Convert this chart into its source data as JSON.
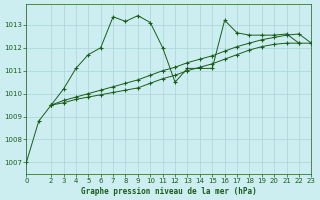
{
  "title": "Graphe pression niveau de la mer (hPa)",
  "bg_color": "#cceef0",
  "grid_color": "#aad4d8",
  "line_color": "#1a5c1a",
  "marker": "+",
  "xlim": [
    0,
    23
  ],
  "ylim": [
    1006.5,
    1013.9
  ],
  "yticks": [
    1007,
    1008,
    1009,
    1010,
    1011,
    1012,
    1013
  ],
  "xticks": [
    0,
    2,
    3,
    4,
    5,
    6,
    7,
    8,
    9,
    10,
    11,
    12,
    13,
    14,
    15,
    16,
    17,
    18,
    19,
    20,
    21,
    22,
    23
  ],
  "series": [
    {
      "x": [
        0,
        1,
        2,
        3,
        4,
        5,
        6,
        7,
        8,
        9,
        10,
        11,
        12,
        13,
        14,
        15,
        16,
        17,
        18,
        19,
        20,
        21,
        22
      ],
      "y": [
        1007.0,
        1008.8,
        1009.5,
        1010.2,
        1011.1,
        1011.7,
        1012.0,
        1013.35,
        1013.15,
        1013.4,
        1013.1,
        1012.0,
        1010.5,
        1011.1,
        1011.1,
        1011.1,
        1013.2,
        1012.65,
        1012.55,
        1012.55,
        1012.55,
        1012.6,
        1012.2
      ]
    },
    {
      "x": [
        2,
        3,
        4,
        5,
        6,
        7,
        8,
        9,
        10,
        11,
        12,
        13,
        14,
        15,
        16,
        17,
        18,
        19,
        20,
        21,
        22,
        23
      ],
      "y": [
        1009.5,
        1009.7,
        1009.85,
        1010.0,
        1010.15,
        1010.3,
        1010.45,
        1010.6,
        1010.8,
        1011.0,
        1011.15,
        1011.35,
        1011.5,
        1011.65,
        1011.85,
        1012.05,
        1012.2,
        1012.35,
        1012.45,
        1012.55,
        1012.6,
        1012.2
      ]
    },
    {
      "x": [
        2,
        3,
        4,
        5,
        6,
        7,
        8,
        9,
        10,
        11,
        12,
        13,
        14,
        15,
        16,
        17,
        18,
        19,
        20,
        21,
        22,
        23
      ],
      "y": [
        1009.5,
        1009.6,
        1009.75,
        1009.85,
        1009.95,
        1010.05,
        1010.15,
        1010.25,
        1010.45,
        1010.65,
        1010.8,
        1011.0,
        1011.15,
        1011.3,
        1011.5,
        1011.7,
        1011.9,
        1012.05,
        1012.15,
        1012.2,
        1012.2,
        1012.2
      ]
    }
  ]
}
